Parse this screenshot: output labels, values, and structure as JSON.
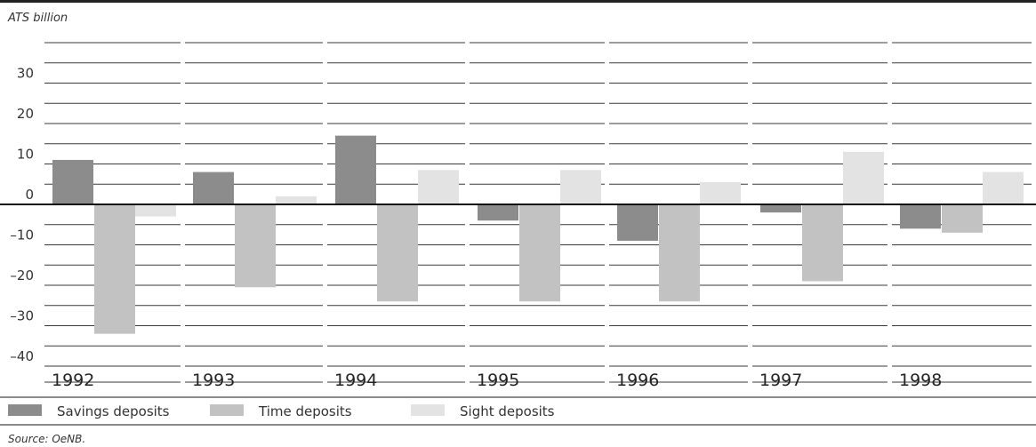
{
  "chart_data": {
    "type": "bar",
    "ylabel": "ATS billion",
    "ylim": [
      -40,
      40
    ],
    "yticks": [
      30,
      20,
      10,
      0,
      -10,
      -20,
      -30,
      -40
    ],
    "ytick_labels": [
      "30",
      "20",
      "10",
      "0",
      "–10",
      "–20",
      "–30",
      "–40"
    ],
    "categories": [
      "1992",
      "1993",
      "1994",
      "1995",
      "1996",
      "1997",
      "1998"
    ],
    "series": [
      {
        "name": "Savings deposits",
        "color": "#8c8c8c",
        "values": [
          11,
          8,
          17,
          -4,
          -9,
          -2,
          -6
        ]
      },
      {
        "name": "Time deposits",
        "color": "#c2c2c2",
        "values": [
          -32,
          -20.5,
          -24,
          -24,
          -24,
          -19,
          -7
        ]
      },
      {
        "name": "Sight deposits",
        "color": "#e3e3e3",
        "values": [
          -3,
          2,
          8.5,
          8.5,
          5.5,
          13,
          8
        ]
      }
    ],
    "grid": true,
    "legend_position": "bottom"
  },
  "source": "Source: OeNB."
}
